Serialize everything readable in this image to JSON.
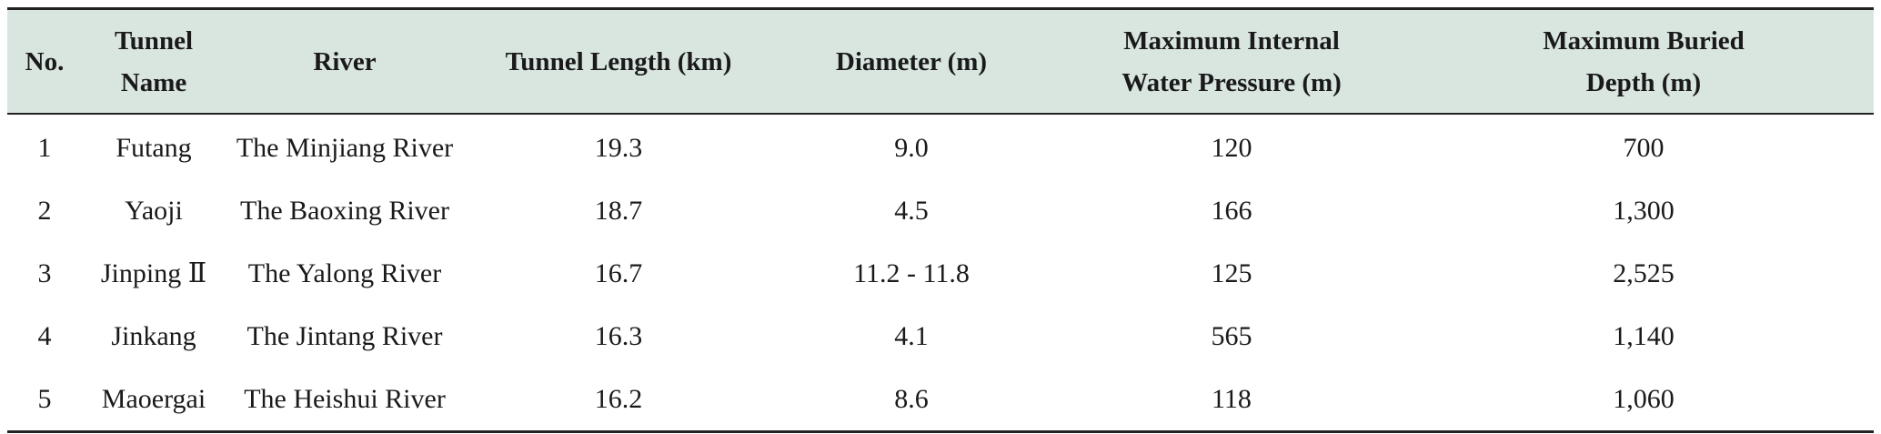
{
  "table": {
    "headers": [
      [
        "No."
      ],
      [
        "Tunnel",
        "Name"
      ],
      [
        "River"
      ],
      [
        "Tunnel Length (km)"
      ],
      [
        "Diameter (m)"
      ],
      [
        "Maximum Internal",
        "Water Pressure (m)"
      ],
      [
        "Maximum Buried",
        "Depth (m)"
      ]
    ],
    "rows": [
      [
        "1",
        "Futang",
        "The Minjiang River",
        "19.3",
        "9.0",
        "120",
        "700"
      ],
      [
        "2",
        "Yaoji",
        "The Baoxing River",
        "18.7",
        "4.5",
        "166",
        "1,300"
      ],
      [
        "3",
        "Jinping Ⅱ",
        "The Yalong River",
        "16.7",
        "11.2 - 11.8",
        "125",
        "2,525"
      ],
      [
        "4",
        "Jinkang",
        "The Jintang River",
        "16.3",
        "4.1",
        "565",
        "1,140"
      ],
      [
        "5",
        "Maoergai",
        "The Heishui River",
        "16.2",
        "8.6",
        "118",
        "1,060"
      ]
    ]
  }
}
